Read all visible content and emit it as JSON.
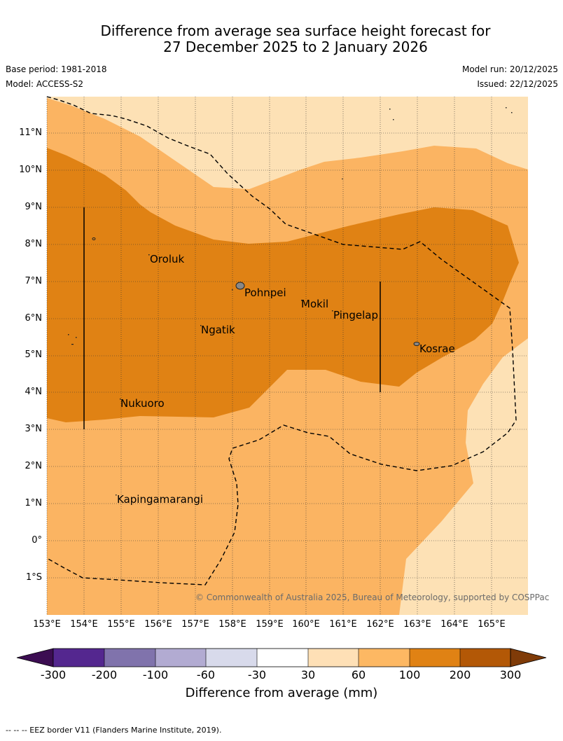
{
  "title_line1": "Difference from average sea surface height forecast for",
  "title_line2": "27 December 2025 to 2 January 2026",
  "base_period": "Base period: 1981-2018",
  "model": "Model: ACCESS-S2",
  "model_run": "Model run: 20/12/2025",
  "issued": "Issued: 22/12/2025",
  "lat_labels": [
    "11°N",
    "10°N",
    "9°N",
    "8°N",
    "7°N",
    "6°N",
    "5°N",
    "4°N",
    "3°N",
    "2°N",
    "1°N",
    "0°",
    "1°S"
  ],
  "lon_labels": [
    "153°E",
    "154°E",
    "155°E",
    "156°E",
    "157°E",
    "158°E",
    "159°E",
    "160°E",
    "161°E",
    "162°E",
    "163°E",
    "164°E",
    "165°E"
  ],
  "places": {
    "oroluk": "Oroluk",
    "pohnpei": "Pohnpei",
    "mokil": "Mokil",
    "pingelap": "Pingelap",
    "ngatik": "Ngatik",
    "kosrae": "Kosrae",
    "nukuoro": "Nukuoro",
    "kapingamarangi": "Kapingamarangi"
  },
  "copyright": "© Commonwealth of Australia 2025, Bureau of Meteorology, supported by COSPPac",
  "colorbar": {
    "ticks": [
      "-300",
      "-200",
      "-100",
      "-60",
      "-30",
      "30",
      "60",
      "100",
      "200",
      "300"
    ],
    "label": "Difference from average (mm)",
    "colors": [
      "#3c0d52",
      "#54278f",
      "#8073ac",
      "#b2abd2",
      "#d8daeb",
      "#ffffff",
      "#fee0b6",
      "#fdb863",
      "#e08214",
      "#b35806",
      "#7f3b08"
    ]
  },
  "footer": "--  --  -- EEZ border V11 (Flanders Marine Institute, 2019)."
}
